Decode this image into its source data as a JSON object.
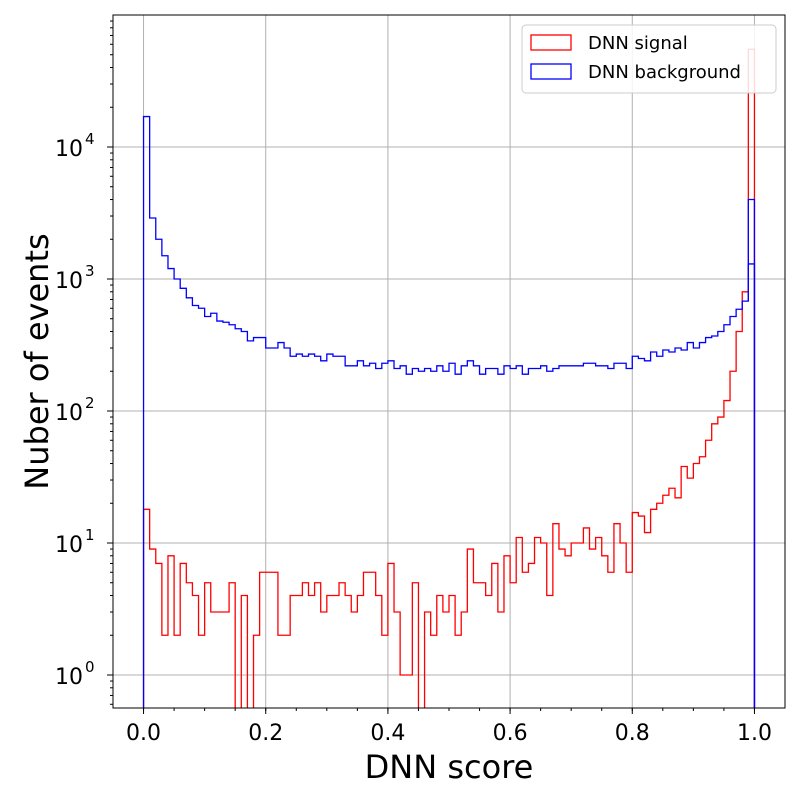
{
  "chart_data": {
    "type": "histogram",
    "xlabel": "DNN score",
    "ylabel": "Nuber of events",
    "xlim": [
      -0.05,
      1.05
    ],
    "ylim_log10": [
      -0.25,
      5.0
    ],
    "y_scale": "log",
    "grid": true,
    "legend_position": "top-right",
    "x_ticks": [
      {
        "value": 0.0,
        "label": "0.0"
      },
      {
        "value": 0.2,
        "label": "0.2"
      },
      {
        "value": 0.4,
        "label": "0.4"
      },
      {
        "value": 0.6,
        "label": "0.6"
      },
      {
        "value": 0.8,
        "label": "0.8"
      },
      {
        "value": 1.0,
        "label": "1.0"
      }
    ],
    "y_ticks": [
      {
        "value": 1,
        "base": "10",
        "exp": "0"
      },
      {
        "value": 10,
        "base": "10",
        "exp": "1"
      },
      {
        "value": 100,
        "base": "10",
        "exp": "2"
      },
      {
        "value": 1000,
        "base": "10",
        "exp": "3"
      },
      {
        "value": 10000,
        "base": "10",
        "exp": "4"
      }
    ],
    "bin_edges": {
      "start": 0.0,
      "stop": 1.0,
      "count": 100
    },
    "series": [
      {
        "name": "DNN signal",
        "color": "#ff0000",
        "values": [
          18,
          9,
          7,
          2,
          8,
          2,
          7,
          5,
          4,
          2,
          5,
          3,
          3,
          3,
          5,
          0,
          4,
          0,
          2,
          6,
          6,
          6,
          2,
          2,
          4,
          4,
          5,
          4,
          5,
          3,
          4,
          4,
          5,
          4,
          3,
          4,
          6,
          6,
          4,
          2,
          7,
          3,
          1,
          1,
          5,
          0,
          3,
          2,
          4,
          3,
          4,
          2,
          3,
          9,
          5,
          5,
          4,
          7,
          3,
          8,
          5,
          11,
          6,
          7,
          11,
          10,
          4,
          14,
          9,
          8,
          10,
          10,
          13,
          9,
          11,
          8,
          6,
          14,
          10,
          6,
          17,
          16,
          12,
          18,
          20,
          23,
          26,
          22,
          38,
          31,
          40,
          45,
          60,
          80,
          90,
          120,
          200,
          400,
          800,
          55000
        ]
      },
      {
        "name": "DNN background",
        "color": "#0000ff",
        "values": [
          17000,
          2900,
          2000,
          1500,
          1200,
          1000,
          850,
          720,
          630,
          600,
          520,
          550,
          480,
          470,
          450,
          420,
          400,
          340,
          360,
          360,
          300,
          300,
          330,
          300,
          260,
          270,
          260,
          270,
          260,
          240,
          270,
          260,
          260,
          220,
          220,
          240,
          220,
          230,
          210,
          230,
          240,
          210,
          220,
          190,
          210,
          200,
          210,
          200,
          220,
          200,
          230,
          190,
          220,
          240,
          220,
          190,
          210,
          210,
          190,
          220,
          210,
          220,
          190,
          210,
          210,
          220,
          200,
          210,
          220,
          220,
          220,
          220,
          230,
          230,
          220,
          220,
          210,
          230,
          230,
          210,
          260,
          250,
          240,
          280,
          260,
          290,
          280,
          300,
          290,
          330,
          300,
          330,
          360,
          370,
          400,
          450,
          520,
          590,
          680,
          1300
        ]
      }
    ],
    "extra_spikes": [
      {
        "series": "DNN background",
        "x": 0.995,
        "value": 4000
      }
    ]
  }
}
